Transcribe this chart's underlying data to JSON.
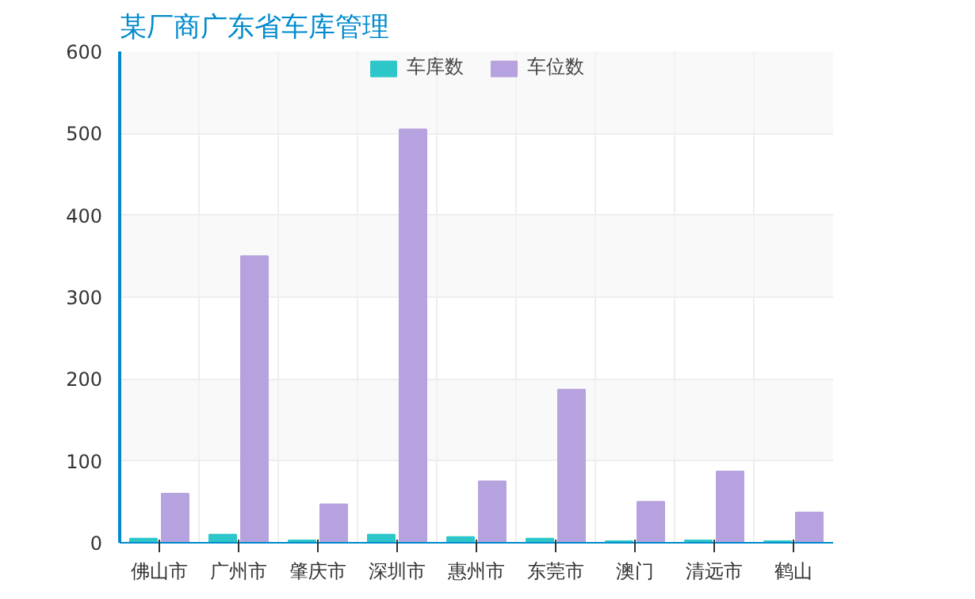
{
  "chart_data": {
    "type": "bar",
    "title": "某厂商广东省车库管理",
    "categories": [
      "佛山市",
      "广州市",
      "肇庆市",
      "深圳市",
      "惠州市",
      "东莞市",
      "澳门",
      "清远市",
      "鹤山"
    ],
    "series": [
      {
        "name": "车库数",
        "color": "#2ec7c9",
        "values": [
          5,
          10,
          3,
          10,
          7,
          5,
          2,
          3,
          2
        ]
      },
      {
        "name": "车位数",
        "color": "#b6a2de",
        "values": [
          60,
          350,
          47,
          505,
          75,
          187,
          50,
          87,
          37
        ]
      }
    ],
    "ylim": [
      0,
      600
    ],
    "yticks": [
      0,
      100,
      200,
      300,
      400,
      500,
      600
    ],
    "grid": true,
    "legend": "top"
  }
}
